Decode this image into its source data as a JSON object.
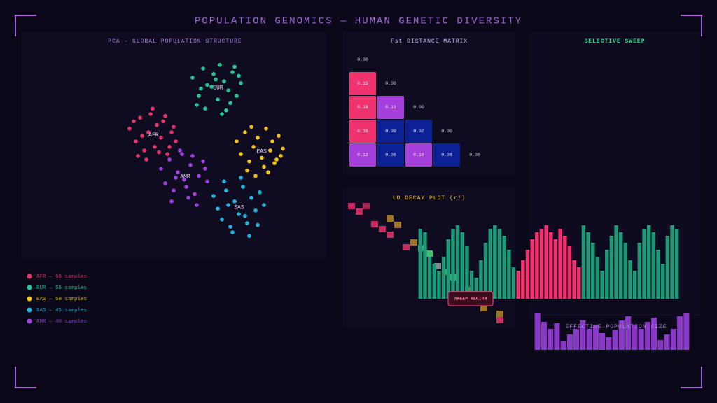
{
  "title": "POPULATION GENOMICS — HUMAN GENETIC DIVERSITY",
  "sweep_panel": {
    "title": "SELECTIVE SWEEP"
  },
  "chart_data": [
    {
      "type": "scatter",
      "title": "PCA — GLOBAL POPULATION STRUCTURE",
      "xlim": [
        0,
        100
      ],
      "ylim": [
        0,
        100
      ],
      "series": [
        {
          "name": "AFR — 60 samples",
          "label": "AFR",
          "color": "#e8336b",
          "x": [
            15,
            18,
            20,
            22,
            24,
            25,
            27,
            28,
            30,
            31,
            33,
            35,
            37,
            19,
            23,
            26,
            29,
            32,
            36,
            21,
            34,
            17
          ],
          "values": [
            62,
            55,
            68,
            50,
            60,
            70,
            52,
            64,
            57,
            66,
            48,
            60,
            55,
            47,
            45,
            73,
            49,
            69,
            63,
            58,
            52,
            66
          ]
        },
        {
          "name": "EUR — 55 samples",
          "label": "EUR",
          "color": "#22c997",
          "x": [
            45,
            48,
            50,
            52,
            55,
            57,
            58,
            60,
            62,
            64,
            66,
            68,
            47,
            51,
            54,
            59,
            63,
            67,
            56,
            61,
            49,
            65
          ],
          "values": [
            90,
            80,
            95,
            86,
            92,
            78,
            97,
            88,
            83,
            93,
            80,
            87,
            75,
            73,
            85,
            70,
            76,
            91,
            89,
            72,
            84,
            96
          ]
        },
        {
          "name": "EAS — 50 samples",
          "label": "EAS",
          "color": "#f5c518",
          "x": [
            66,
            68,
            70,
            72,
            74,
            76,
            78,
            80,
            82,
            84,
            86,
            88,
            71,
            75,
            79,
            83,
            87,
            73,
            81,
            85
          ],
          "values": [
            55,
            48,
            60,
            44,
            52,
            57,
            46,
            62,
            50,
            43,
            58,
            51,
            39,
            36,
            41,
            55,
            47,
            63,
            38,
            45
          ]
        },
        {
          "name": "SAS — 45 samples",
          "label": "SAS",
          "color": "#1fb7e0",
          "x": [
            55,
            57,
            59,
            61,
            63,
            65,
            67,
            69,
            71,
            73,
            75,
            77,
            79,
            60,
            64,
            68,
            72,
            76,
            62,
            70
          ],
          "values": [
            25,
            18,
            12,
            28,
            8,
            22,
            15,
            30,
            10,
            24,
            17,
            27,
            20,
            33,
            5,
            35,
            3,
            9,
            20,
            14
          ]
        },
        {
          "name": "AMR — 40 samples",
          "label": "AMR",
          "color": "#a040e0",
          "x": [
            30,
            32,
            34,
            36,
            38,
            40,
            42,
            44,
            46,
            48,
            50,
            52,
            35,
            39,
            43,
            47,
            51,
            37,
            45,
            41
          ],
          "values": [
            40,
            32,
            45,
            28,
            38,
            48,
            30,
            42,
            26,
            36,
            44,
            33,
            22,
            50,
            24,
            20,
            40,
            35,
            47,
            34
          ]
        }
      ]
    },
    {
      "type": "heatmap",
      "title": "Fst DISTANCE MATRIX",
      "values": [
        [
          0
        ],
        [
          0.15,
          0
        ],
        [
          0.18,
          0.11,
          0
        ],
        [
          0.16,
          0.09,
          0.07,
          0
        ],
        [
          0.12,
          0.06,
          0.1,
          0.08,
          0
        ]
      ],
      "value_labels": [
        [
          "0.00"
        ],
        [
          "0.15",
          "0.00"
        ],
        [
          "0.18",
          "0.11",
          "0.00"
        ],
        [
          "0.16",
          "0.09",
          "0.07",
          "0.00"
        ],
        [
          "0.12",
          "0.06",
          "0.10",
          "0.08",
          "0.00"
        ]
      ],
      "colors": [
        [],
        [
          "#f0336e"
        ],
        [
          "#f0336e",
          "#a43fdc"
        ],
        [
          "#f0336e",
          "#0d2196",
          "#0d2196"
        ],
        [
          "#a43fdc",
          "#0d2196",
          "#a43fdc",
          "#0d2196"
        ]
      ]
    },
    {
      "type": "bar",
      "title": "LD DECAY PLOT (r²)",
      "annotation": "SWEEP REGION",
      "ylim": [
        0,
        110
      ],
      "values": [
        100,
        95,
        60,
        50,
        40,
        60,
        85,
        100,
        105,
        95,
        75,
        40,
        30,
        55,
        80,
        100,
        105,
        100,
        90,
        70,
        45,
        40,
        55,
        70,
        85,
        95,
        100,
        105,
        95,
        85,
        100,
        90,
        75,
        55,
        45,
        105,
        95,
        80,
        60,
        40,
        70,
        90,
        105,
        95,
        80,
        55,
        40,
        80,
        100,
        105,
        95,
        70,
        50,
        90,
        105,
        100
      ],
      "colors": [
        "#1e9a78",
        "#1e9a78",
        "#1e9a78",
        "#1e9a78",
        "#1e9a78",
        "#1e9a78",
        "#1e9a78",
        "#1e9a78",
        "#1e9a78",
        "#1e9a78",
        "#1e9a78",
        "#1e9a78",
        "#1e9a78",
        "#1e9a78",
        "#1e9a78",
        "#1e9a78",
        "#1e9a78",
        "#1e9a78",
        "#1e9a78",
        "#1e9a78",
        "#1e9a78",
        "#f0336e",
        "#f0336e",
        "#f0336e",
        "#f0336e",
        "#f0336e",
        "#f0336e",
        "#f0336e",
        "#f0336e",
        "#f0336e",
        "#f0336e",
        "#f0336e",
        "#f0336e",
        "#f0336e",
        "#f0336e",
        "#1e9a78",
        "#1e9a78",
        "#1e9a78",
        "#1e9a78",
        "#1e9a78",
        "#1e9a78",
        "#1e9a78",
        "#1e9a78",
        "#1e9a78",
        "#1e9a78",
        "#1e9a78",
        "#1e9a78",
        "#1e9a78",
        "#1e9a78",
        "#1e9a78",
        "#1e9a78",
        "#1e9a78",
        "#1e9a78",
        "#1e9a78",
        "#1e9a78",
        "#1e9a78"
      ]
    },
    {
      "type": "bar",
      "title": "EFFECTIVE POPULATION SIZE",
      "ylim": [
        0,
        60
      ],
      "color": "#8a38c8",
      "values": [
        52,
        40,
        30,
        38,
        12,
        22,
        30,
        42,
        30,
        36,
        24,
        18,
        28,
        42,
        48,
        36,
        30,
        40,
        46,
        14,
        22,
        30,
        48,
        52
      ]
    }
  ]
}
